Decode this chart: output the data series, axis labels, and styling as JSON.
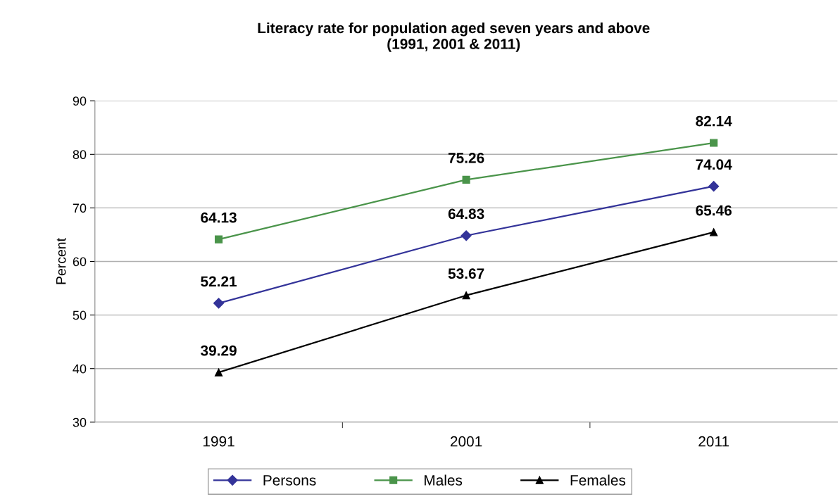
{
  "chart_data": {
    "type": "line",
    "title": "Literacy rate for population aged seven years and above\n(1991, 2001 & 2011)",
    "ylabel": "Percent",
    "categories": [
      "1991",
      "2001",
      "2011"
    ],
    "series": [
      {
        "name": "Persons",
        "color": "#333399",
        "marker": "diamond",
        "values": [
          52.21,
          64.83,
          74.04
        ]
      },
      {
        "name": "Males",
        "color": "#4a944a",
        "marker": "square",
        "values": [
          64.13,
          75.26,
          82.14
        ]
      },
      {
        "name": "Females",
        "color": "#000000",
        "marker": "triangle",
        "values": [
          39.29,
          53.67,
          65.46
        ]
      }
    ],
    "ylim": [
      30,
      90
    ],
    "yticks": [
      30,
      40,
      50,
      60,
      70,
      80,
      90
    ],
    "grid": "y",
    "legend": "bottom",
    "data_labels": true,
    "line_style": "solid"
  }
}
